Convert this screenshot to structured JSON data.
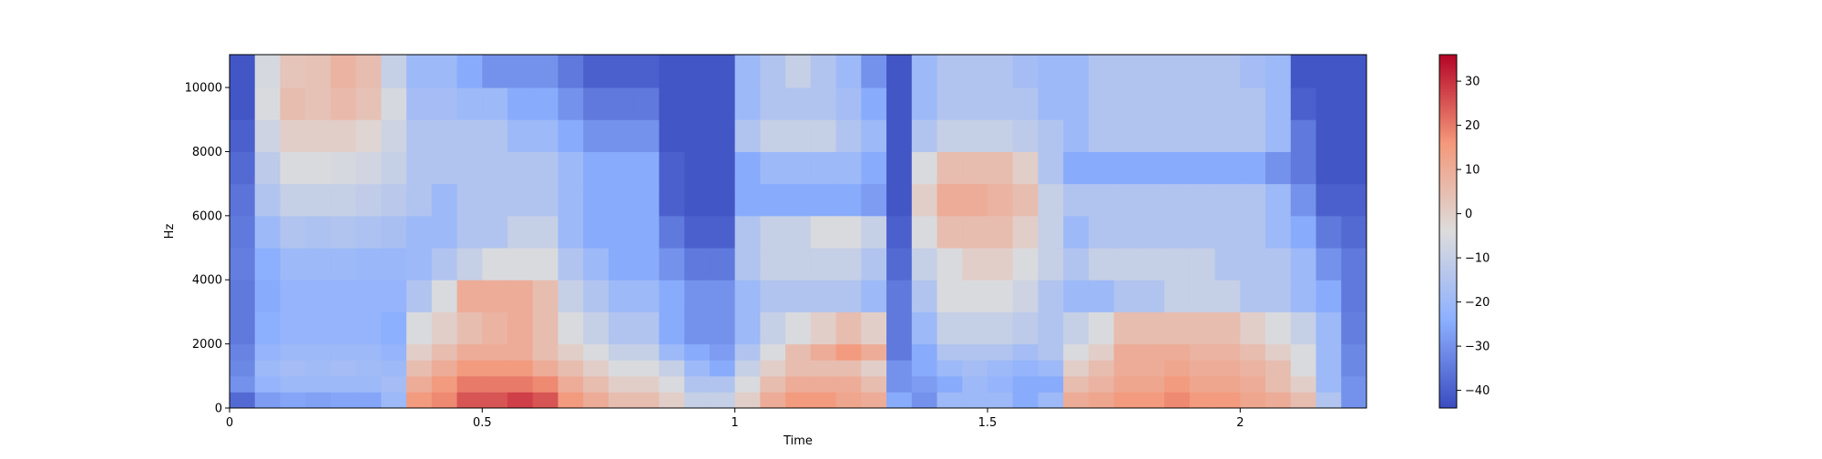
{
  "chart_data": {
    "type": "heatmap",
    "title": "",
    "xlabel": "Time",
    "ylabel": "Hz",
    "xlim": [
      0,
      2.25
    ],
    "ylim": [
      0,
      11025
    ],
    "xticks": [
      0,
      0.5,
      1,
      1.5,
      2
    ],
    "xtick_labels": [
      "0",
      "0.5",
      "1",
      "1.5",
      "2"
    ],
    "yticks": [
      0,
      2000,
      4000,
      6000,
      8000,
      10000
    ],
    "ytick_labels": [
      "0",
      "2000",
      "4000",
      "6000",
      "8000",
      "10000"
    ],
    "colormap": "coolwarm",
    "colorbar": {
      "range": [
        -44,
        36
      ],
      "ticks": [
        -40,
        -30,
        -20,
        -10,
        0,
        10,
        20,
        30
      ],
      "tick_labels": [
        "−40",
        "−30",
        "−20",
        "−10",
        "0",
        "10",
        "20",
        "30"
      ]
    },
    "time_bins": [
      0,
      0.05,
      0.1,
      0.15,
      0.2,
      0.25,
      0.3,
      0.35,
      0.4,
      0.45,
      0.5,
      0.55,
      0.6,
      0.65,
      0.7,
      0.75,
      0.8,
      0.85,
      0.9,
      0.95,
      1.0,
      1.05,
      1.1,
      1.15,
      1.2,
      1.25,
      1.3,
      1.35,
      1.4,
      1.45,
      1.5,
      1.55,
      1.6,
      1.65,
      1.7,
      1.75,
      1.8,
      1.85,
      1.9,
      1.95,
      2.0,
      2.05,
      2.1,
      2.15,
      2.2
    ],
    "freq_bins_hz": [
      0,
      500,
      1000,
      1500,
      2000,
      3000,
      4000,
      5000,
      6000,
      7000,
      8000,
      9000,
      10000
    ],
    "intensity_db_by_time": [
      [
        -38,
        -30,
        -32,
        -33,
        -35,
        -35,
        -34,
        -35,
        -36,
        -38,
        -40,
        -42,
        -42
      ],
      [
        -28,
        -22,
        -20,
        -22,
        -24,
        -25,
        -24,
        -20,
        -15,
        -12,
        -8,
        -5,
        -6
      ],
      [
        -26,
        -20,
        -18,
        -20,
        -22,
        -22,
        -20,
        -15,
        -10,
        -5,
        0,
        5,
        3
      ],
      [
        -27,
        -20,
        -19,
        -20,
        -22,
        -22,
        -20,
        -16,
        -10,
        -5,
        0,
        4,
        4
      ],
      [
        -26,
        -20,
        -18,
        -20,
        -22,
        -22,
        -20,
        -15,
        -10,
        -6,
        0,
        6,
        8
      ],
      [
        -26,
        -20,
        -19,
        -20,
        -22,
        -22,
        -21,
        -16,
        -11,
        -7,
        -2,
        4,
        5
      ],
      [
        -20,
        -18,
        -20,
        -22,
        -24,
        -22,
        -21,
        -17,
        -13,
        -10,
        -8,
        -6,
        -10
      ],
      [
        15,
        10,
        5,
        0,
        -5,
        -15,
        -20,
        -20,
        -15,
        -15,
        -15,
        -18,
        -20
      ],
      [
        18,
        15,
        10,
        5,
        0,
        -5,
        -15,
        -20,
        -20,
        -15,
        -15,
        -18,
        -20
      ],
      [
        25,
        20,
        15,
        10,
        5,
        10,
        -10,
        -15,
        -15,
        -15,
        -15,
        -20,
        -25
      ],
      [
        25,
        20,
        15,
        10,
        8,
        10,
        -5,
        -15,
        -15,
        -15,
        -15,
        -20,
        -30
      ],
      [
        28,
        20,
        15,
        10,
        10,
        10,
        -5,
        -10,
        -15,
        -15,
        -20,
        -25,
        -30
      ],
      [
        25,
        18,
        10,
        5,
        5,
        5,
        -5,
        -10,
        -15,
        -15,
        -20,
        -25,
        -30
      ],
      [
        15,
        10,
        5,
        0,
        -5,
        -10,
        -15,
        -20,
        -20,
        -20,
        -25,
        -30,
        -35
      ],
      [
        10,
        5,
        0,
        -5,
        -10,
        -15,
        -20,
        -25,
        -25,
        -25,
        -30,
        -35,
        -40
      ],
      [
        5,
        0,
        -5,
        -10,
        -15,
        -20,
        -25,
        -25,
        -25,
        -25,
        -30,
        -35,
        -40
      ],
      [
        5,
        0,
        -5,
        -10,
        -15,
        -20,
        -25,
        -25,
        -25,
        -25,
        -30,
        -35,
        -40
      ],
      [
        0,
        -5,
        -10,
        -20,
        -25,
        -25,
        -30,
        -35,
        -40,
        -40,
        -42,
        -42,
        -42
      ],
      [
        -10,
        -15,
        -20,
        -25,
        -30,
        -30,
        -35,
        -40,
        -42,
        -42,
        -42,
        -42,
        -42
      ],
      [
        -10,
        -15,
        -25,
        -28,
        -30,
        -30,
        -35,
        -40,
        -42,
        -42,
        -42,
        -42,
        -42
      ],
      [
        0,
        -5,
        -10,
        -15,
        -20,
        -20,
        -15,
        -15,
        -25,
        -25,
        -15,
        -20,
        -20
      ],
      [
        10,
        5,
        0,
        -5,
        -10,
        -15,
        -10,
        -10,
        -25,
        -20,
        -10,
        -15,
        -15
      ],
      [
        15,
        10,
        5,
        5,
        -5,
        -15,
        -10,
        -10,
        -25,
        -20,
        -10,
        -15,
        -10
      ],
      [
        15,
        10,
        5,
        10,
        0,
        -15,
        -10,
        -5,
        -25,
        -20,
        -10,
        -15,
        -15
      ],
      [
        12,
        10,
        5,
        15,
        5,
        -15,
        -10,
        -5,
        -25,
        -20,
        -15,
        -18,
        -20
      ],
      [
        10,
        5,
        0,
        10,
        0,
        -20,
        -15,
        -10,
        -28,
        -25,
        -20,
        -25,
        -30
      ],
      [
        -25,
        -30,
        -30,
        -35,
        -35,
        -35,
        -38,
        -40,
        -42,
        -42,
        -42,
        -42,
        -42
      ],
      [
        -30,
        -28,
        -25,
        -25,
        -20,
        -15,
        -10,
        -5,
        0,
        -5,
        -15,
        -20,
        -20
      ],
      [
        -20,
        -25,
        -20,
        -15,
        -10,
        -5,
        -5,
        5,
        10,
        5,
        -10,
        -15,
        -15
      ],
      [
        -20,
        -20,
        -18,
        -15,
        -10,
        -5,
        0,
        5,
        10,
        5,
        -10,
        -15,
        -15
      ],
      [
        -20,
        -22,
        -20,
        -15,
        -10,
        -5,
        0,
        5,
        8,
        5,
        -10,
        -15,
        -15
      ],
      [
        -25,
        -25,
        -22,
        -18,
        -12,
        -8,
        -5,
        0,
        5,
        0,
        -12,
        -15,
        -18
      ],
      [
        -20,
        -25,
        -20,
        -15,
        -15,
        -15,
        -10,
        -10,
        -10,
        -15,
        -15,
        -20,
        -20
      ],
      [
        10,
        5,
        0,
        -5,
        -10,
        -20,
        -15,
        -20,
        -15,
        -25,
        -20,
        -20,
        -20
      ],
      [
        12,
        8,
        5,
        0,
        -5,
        -20,
        -10,
        -15,
        -15,
        -25,
        -15,
        -15,
        -15
      ],
      [
        15,
        12,
        10,
        10,
        5,
        -15,
        -10,
        -15,
        -15,
        -25,
        -15,
        -15,
        -15
      ],
      [
        15,
        12,
        10,
        10,
        5,
        -15,
        -10,
        -15,
        -15,
        -25,
        -15,
        -15,
        -15
      ],
      [
        18,
        15,
        12,
        10,
        5,
        -10,
        -10,
        -15,
        -15,
        -25,
        -15,
        -15,
        -15
      ],
      [
        15,
        12,
        10,
        8,
        5,
        -10,
        -10,
        -15,
        -15,
        -25,
        -15,
        -15,
        -15
      ],
      [
        15,
        12,
        10,
        8,
        5,
        -10,
        -15,
        -15,
        -15,
        -25,
        -15,
        -15,
        -15
      ],
      [
        12,
        10,
        8,
        5,
        0,
        -15,
        -15,
        -15,
        -15,
        -25,
        -15,
        -15,
        -18
      ],
      [
        10,
        5,
        5,
        0,
        -5,
        -15,
        -15,
        -20,
        -20,
        -30,
        -20,
        -20,
        -20
      ],
      [
        5,
        0,
        -5,
        -5,
        -10,
        -20,
        -20,
        -25,
        -30,
        -35,
        -35,
        -40,
        -42
      ],
      [
        -15,
        -20,
        -20,
        -20,
        -20,
        -25,
        -30,
        -35,
        -40,
        -42,
        -42,
        -42,
        -42
      ],
      [
        -30,
        -30,
        -32,
        -32,
        -34,
        -35,
        -35,
        -38,
        -40,
        -42,
        -42,
        -42,
        -42
      ]
    ]
  }
}
